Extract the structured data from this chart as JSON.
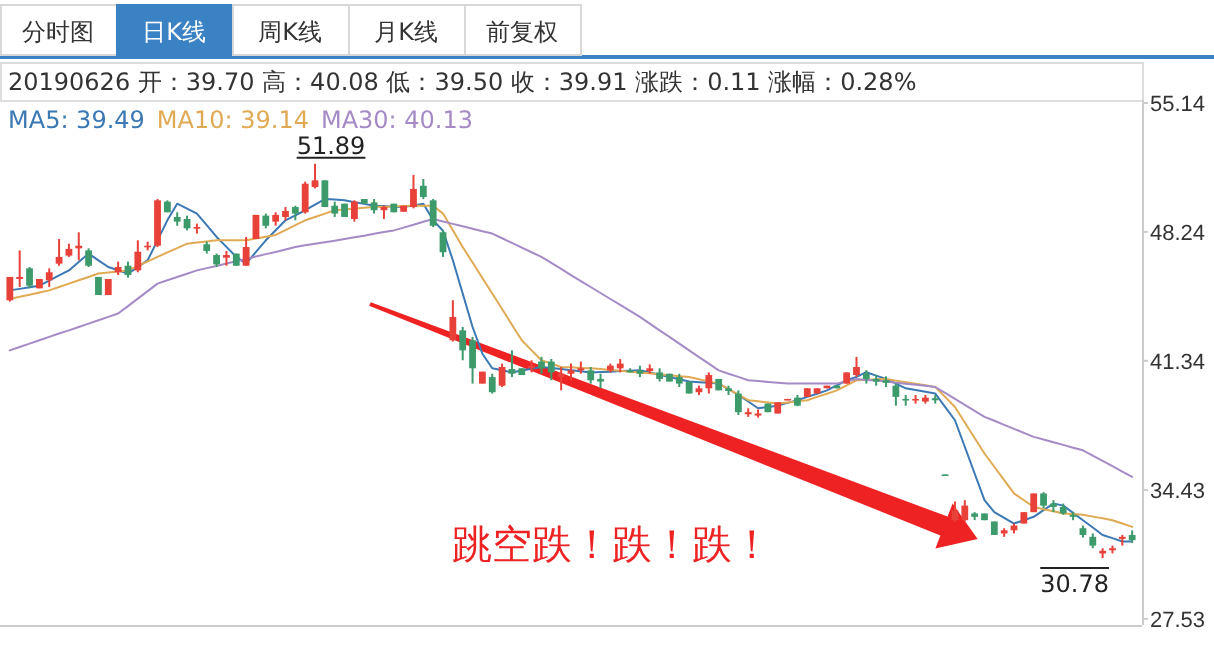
{
  "chart_data": {
    "type": "candlestick",
    "annotations": [
      "分时图",
      "日K线",
      "周K线",
      "月K线",
      "前复权",
      "20190626 开：39.70 高：40.08 低：39.50 收：39.91 涨跌：0.11 涨幅：0.28%",
      "跳空跌！跌！跌！",
      "51.89",
      "30.78"
    ],
    "categories": [
      null,
      null,
      null,
      null,
      null,
      null,
      null,
      null,
      null,
      null,
      null,
      null,
      null,
      null,
      null,
      null,
      null,
      null,
      null,
      null,
      null,
      null,
      null,
      null,
      null,
      null,
      null,
      null,
      null,
      null,
      null,
      null,
      null,
      null,
      null,
      null,
      null,
      null,
      null,
      null,
      null,
      null,
      null,
      null,
      null,
      null,
      null,
      null,
      null,
      null,
      null,
      null,
      null,
      null,
      null,
      null,
      null,
      null,
      null,
      null,
      null,
      null,
      null,
      null,
      null,
      null,
      null,
      null,
      null,
      null,
      null,
      null,
      null,
      null,
      null,
      null,
      null,
      null,
      null,
      null,
      null,
      null,
      null,
      null,
      null,
      null,
      null,
      null,
      null,
      null,
      null,
      null,
      null,
      null,
      null,
      null,
      null,
      null,
      null,
      null,
      null,
      null,
      null,
      null,
      null,
      null,
      null,
      null,
      null,
      null,
      null,
      null,
      null,
      null,
      null
    ],
    "ohlc": [
      [
        44.58,
        45.83,
        44.51,
        45.83
      ],
      [
        45.72,
        47.25,
        45.29,
        45.83
      ],
      [
        46.29,
        46.36,
        45.22,
        45.36
      ],
      [
        45.22,
        45.72,
        45.22,
        45.72
      ],
      [
        45.65,
        46.29,
        45.29,
        46.08
      ],
      [
        46.54,
        47.86,
        46.43,
        46.9
      ],
      [
        46.97,
        47.61,
        46.9,
        47.33
      ],
      [
        47.36,
        48.22,
        46.72,
        47.5
      ],
      [
        47.25,
        47.36,
        46.36,
        46.43
      ],
      [
        45.83,
        45.83,
        44.86,
        44.86
      ],
      [
        44.86,
        45.72,
        44.86,
        45.72
      ],
      [
        46.08,
        46.65,
        45.93,
        46.36
      ],
      [
        46.43,
        46.65,
        45.79,
        45.93
      ],
      [
        46.18,
        47.79,
        46.08,
        47.18
      ],
      [
        47.43,
        47.72,
        47.25,
        47.5
      ],
      [
        47.5,
        50.0,
        47.43,
        49.93
      ],
      [
        49.86,
        49.93,
        49.29,
        49.29
      ],
      [
        49.04,
        49.29,
        48.57,
        48.79
      ],
      [
        48.93,
        49.11,
        48.32,
        48.43
      ],
      [
        48.43,
        48.68,
        48.15,
        48.5
      ],
      [
        47.58,
        47.72,
        47.08,
        47.22
      ],
      [
        47.0,
        47.08,
        46.36,
        46.5
      ],
      [
        46.86,
        47.22,
        46.43,
        47.0
      ],
      [
        47.08,
        47.08,
        46.43,
        46.43
      ],
      [
        46.43,
        47.97,
        46.43,
        47.43
      ],
      [
        47.86,
        49.15,
        47.86,
        49.15
      ],
      [
        49.11,
        49.22,
        48.43,
        48.57
      ],
      [
        48.79,
        49.29,
        48.57,
        49.15
      ],
      [
        49.04,
        49.57,
        48.86,
        49.36
      ],
      [
        49.57,
        49.64,
        48.86,
        49.22
      ],
      [
        49.29,
        50.93,
        49.22,
        50.82
      ],
      [
        50.64,
        51.89,
        50.57,
        51.0
      ],
      [
        51.0,
        51.0,
        49.57,
        49.57
      ],
      [
        49.64,
        49.86,
        49.04,
        49.22
      ],
      [
        49.75,
        49.75,
        49.04,
        49.04
      ],
      [
        48.93,
        49.93,
        48.79,
        49.86
      ],
      [
        50.0,
        50.0,
        49.75,
        49.75
      ],
      [
        49.82,
        50.0,
        49.22,
        49.4
      ],
      [
        49.4,
        49.64,
        48.93,
        49.57
      ],
      [
        49.75,
        49.75,
        49.29,
        49.29
      ],
      [
        49.32,
        49.64,
        49.32,
        49.64
      ],
      [
        49.57,
        51.29,
        49.5,
        50.54
      ],
      [
        50.71,
        51.07,
        50.0,
        50.11
      ],
      [
        49.93,
        50.0,
        48.5,
        48.57
      ],
      [
        48.22,
        48.32,
        46.9,
        47.15
      ],
      [
        42.44,
        44.58,
        42.37,
        43.69
      ],
      [
        42.97,
        43.15,
        41.37,
        41.9
      ],
      [
        42.44,
        42.62,
        40.12,
        40.94
      ],
      [
        40.12,
        40.76,
        40.12,
        40.76
      ],
      [
        40.47,
        40.65,
        39.59,
        39.66
      ],
      [
        40.01,
        41.19,
        39.94,
        41.01
      ],
      [
        40.9,
        41.9,
        40.47,
        40.65
      ],
      [
        40.94,
        40.94,
        40.58,
        40.58
      ],
      [
        40.94,
        41.37,
        40.72,
        41.08
      ],
      [
        41.3,
        41.55,
        40.65,
        40.94
      ],
      [
        41.3,
        41.44,
        40.3,
        40.72
      ],
      [
        40.47,
        41.01,
        39.76,
        40.65
      ],
      [
        40.65,
        41.19,
        40.3,
        40.83
      ],
      [
        40.83,
        41.3,
        40.65,
        40.94
      ],
      [
        40.83,
        41.01,
        40.12,
        40.3
      ],
      [
        40.37,
        40.65,
        39.87,
        40.23
      ],
      [
        40.83,
        41.19,
        40.72,
        41.08
      ],
      [
        40.94,
        41.44,
        40.72,
        41.19
      ],
      [
        40.83,
        40.94,
        40.72,
        40.72
      ],
      [
        40.83,
        41.08,
        40.47,
        40.65
      ],
      [
        40.79,
        41.15,
        40.65,
        40.94
      ],
      [
        40.72,
        40.94,
        40.23,
        40.37
      ],
      [
        40.65,
        40.65,
        40.23,
        40.23
      ],
      [
        40.47,
        40.65,
        39.94,
        40.12
      ],
      [
        40.23,
        40.23,
        39.59,
        39.59
      ],
      [
        39.66,
        40.01,
        39.51,
        39.87
      ],
      [
        39.87,
        40.72,
        39.59,
        40.58
      ],
      [
        40.37,
        40.37,
        39.76,
        39.76
      ],
      [
        39.87,
        40.01,
        39.51,
        39.73
      ],
      [
        39.59,
        39.76,
        38.44,
        38.59
      ],
      [
        38.48,
        38.8,
        38.34,
        38.59
      ],
      [
        38.41,
        38.73,
        38.3,
        38.52
      ],
      [
        39.05,
        39.05,
        38.59,
        38.59
      ],
      [
        38.52,
        39.12,
        38.52,
        39.12
      ],
      [
        39.23,
        39.3,
        39.23,
        39.3
      ],
      [
        39.37,
        39.51,
        38.91,
        38.94
      ],
      [
        39.41,
        39.87,
        39.41,
        39.87
      ],
      [
        39.59,
        39.87,
        39.59,
        39.87
      ],
      [
        39.87,
        40.01,
        39.87,
        40.01
      ],
      [
        40.01,
        40.01,
        39.87,
        39.87
      ],
      [
        40.12,
        40.72,
        40.12,
        40.72
      ],
      [
        40.58,
        41.55,
        40.48,
        41.01
      ],
      [
        40.66,
        40.84,
        40.12,
        40.37
      ],
      [
        40.37,
        40.58,
        40.01,
        40.23
      ],
      [
        40.3,
        40.51,
        39.94,
        40.16
      ],
      [
        40.01,
        40.12,
        38.94,
        39.41
      ],
      [
        39.3,
        39.51,
        38.94,
        39.23
      ],
      [
        39.23,
        39.51,
        39.05,
        39.3
      ],
      [
        39.16,
        39.51,
        39.05,
        39.37
      ],
      [
        39.34,
        39.51,
        39.05,
        39.23
      ],
      [
        35.26,
        35.26,
        35.23,
        35.23
      ],
      [
        32.81,
        33.81,
        32.74,
        33.34
      ],
      [
        32.81,
        33.88,
        32.74,
        33.59
      ],
      [
        33.17,
        33.24,
        32.81,
        32.99
      ],
      [
        33.17,
        33.17,
        32.81,
        32.81
      ],
      [
        32.74,
        32.74,
        32.02,
        32.02
      ],
      [
        32.1,
        32.38,
        31.92,
        32.27
      ],
      [
        32.27,
        32.63,
        32.1,
        32.52
      ],
      [
        32.63,
        33.24,
        32.63,
        33.24
      ],
      [
        33.24,
        34.24,
        33.24,
        34.24
      ],
      [
        34.24,
        34.31,
        33.45,
        33.59
      ],
      [
        33.7,
        33.88,
        33.24,
        33.52
      ],
      [
        33.52,
        33.7,
        33.1,
        33.17
      ],
      [
        33.1,
        33.24,
        32.81,
        32.99
      ],
      [
        32.38,
        32.52,
        31.88,
        32.02
      ],
      [
        31.92,
        32.1,
        31.31,
        31.45
      ],
      [
        31.03,
        31.31,
        30.78,
        31.17
      ],
      [
        31.2,
        31.45,
        31.03,
        31.31
      ],
      [
        31.81,
        32.02,
        31.45,
        31.92
      ],
      [
        32.02,
        32.27,
        31.6,
        31.74
      ]
    ],
    "series": [
      {
        "type": "line",
        "name": "MA5: 39.49",
        "color": "#3b78b4",
        "values": [
          45.11,
          45.19,
          45.28,
          45.36,
          45.63,
          45.91,
          46.18,
          46.63,
          47.08,
          46.72,
          46.36,
          46.19,
          46.01,
          46.37,
          46.72,
          47.79,
          48.86,
          49.75,
          49.49,
          49.22,
          48.6,
          47.97,
          47.44,
          46.9,
          46.54,
          47.17,
          47.79,
          48.33,
          48.86,
          49.13,
          49.4,
          49.7,
          50.0,
          49.97,
          49.93,
          49.83,
          49.74,
          49.64,
          49.62,
          49.59,
          49.57,
          49.66,
          49.75,
          48.86,
          48.3,
          46.72,
          44.94,
          43.15,
          41.72,
          40.94,
          40.83,
          40.72,
          40.82,
          40.91,
          41.01,
          40.95,
          40.9,
          40.84,
          40.78,
          40.72,
          40.74,
          40.76,
          40.79,
          40.81,
          40.83,
          40.71,
          40.59,
          40.47,
          40.35,
          40.23,
          40.19,
          40.16,
          40.12,
          39.82,
          39.51,
          39.16,
          38.8,
          38.87,
          38.94,
          39.09,
          39.23,
          39.41,
          39.58,
          39.76,
          40.03,
          40.3,
          40.48,
          40.73,
          40.55,
          40.37,
          40.12,
          39.87,
          39.78,
          39.68,
          39.59,
          38.88,
          38.16,
          36.74,
          35.31,
          33.88,
          33.24,
          32.94,
          32.63,
          32.81,
          32.99,
          33.35,
          33.7,
          33.59,
          33.2,
          32.81,
          32.42,
          32.02,
          31.85,
          31.67,
          31.67
        ]
      },
      {
        "type": "line",
        "name": "MA10: 39.14",
        "color": "#e0aa55",
        "values": [
          44.65,
          44.77,
          44.88,
          45.0,
          45.11,
          45.29,
          45.47,
          45.65,
          45.83,
          46.01,
          46.07,
          46.12,
          46.18,
          46.42,
          46.66,
          46.9,
          47.14,
          47.37,
          47.61,
          47.67,
          47.73,
          47.79,
          47.79,
          47.79,
          47.79,
          47.89,
          47.98,
          48.08,
          48.34,
          48.6,
          48.86,
          49.04,
          49.22,
          49.4,
          49.44,
          49.49,
          49.53,
          49.57,
          49.59,
          49.6,
          49.62,
          49.64,
          49.64,
          49.64,
          49.22,
          48.33,
          47.43,
          46.6,
          45.77,
          44.94,
          44.11,
          43.27,
          42.44,
          41.9,
          41.37,
          41.19,
          41.01,
          40.99,
          40.96,
          40.94,
          40.9,
          40.85,
          40.81,
          40.76,
          40.72,
          40.67,
          40.62,
          40.57,
          40.52,
          40.47,
          40.35,
          40.24,
          40.12,
          39.82,
          39.53,
          39.23,
          39.17,
          39.11,
          39.05,
          39.11,
          39.17,
          39.23,
          39.41,
          39.58,
          39.76,
          40.03,
          40.3,
          40.32,
          40.35,
          40.37,
          40.28,
          40.2,
          40.11,
          40.03,
          39.94,
          39.41,
          38.87,
          38.04,
          37.21,
          36.38,
          35.67,
          34.95,
          34.24,
          33.88,
          33.52,
          33.4,
          33.29,
          33.17,
          33.14,
          33.1,
          33.0,
          32.91,
          32.81,
          32.63,
          32.45
        ]
      },
      {
        "type": "line",
        "name": "MA30: 40.13",
        "color": "#a58bc6",
        "values": [
          41.9,
          42.08,
          42.26,
          42.44,
          42.62,
          42.8,
          42.97,
          43.15,
          43.33,
          43.51,
          43.69,
          43.87,
          44.27,
          44.67,
          45.07,
          45.47,
          45.65,
          45.83,
          46.0,
          46.18,
          46.3,
          46.42,
          46.55,
          46.67,
          46.79,
          46.92,
          47.05,
          47.17,
          47.3,
          47.43,
          47.52,
          47.6,
          47.69,
          47.77,
          47.86,
          47.95,
          48.04,
          48.14,
          48.23,
          48.32,
          48.47,
          48.62,
          48.78,
          48.93,
          48.8,
          48.67,
          48.54,
          48.41,
          48.28,
          48.15,
          47.9,
          47.65,
          47.4,
          47.15,
          46.9,
          46.58,
          46.26,
          45.93,
          45.61,
          45.29,
          44.97,
          44.65,
          44.33,
          44.01,
          43.69,
          43.33,
          42.97,
          42.62,
          42.26,
          41.9,
          41.54,
          41.19,
          40.83,
          40.65,
          40.48,
          40.3,
          40.26,
          40.21,
          40.17,
          40.12,
          40.12,
          40.12,
          40.12,
          40.12,
          40.12,
          40.25,
          40.37,
          40.32,
          40.28,
          40.23,
          40.17,
          40.11,
          40.06,
          40.0,
          39.94,
          39.62,
          39.3,
          38.98,
          38.66,
          38.34,
          38.13,
          37.91,
          37.7,
          37.48,
          37.27,
          37.13,
          36.98,
          36.84,
          36.69,
          36.55,
          36.27,
          35.98,
          35.7,
          35.41,
          35.13
        ]
      }
    ],
    "ylim": [
      27.2,
      55.3
    ],
    "yticks": [
      55.14,
      48.24,
      41.34,
      34.43,
      27.53
    ],
    "legend": "top left"
  }
}
